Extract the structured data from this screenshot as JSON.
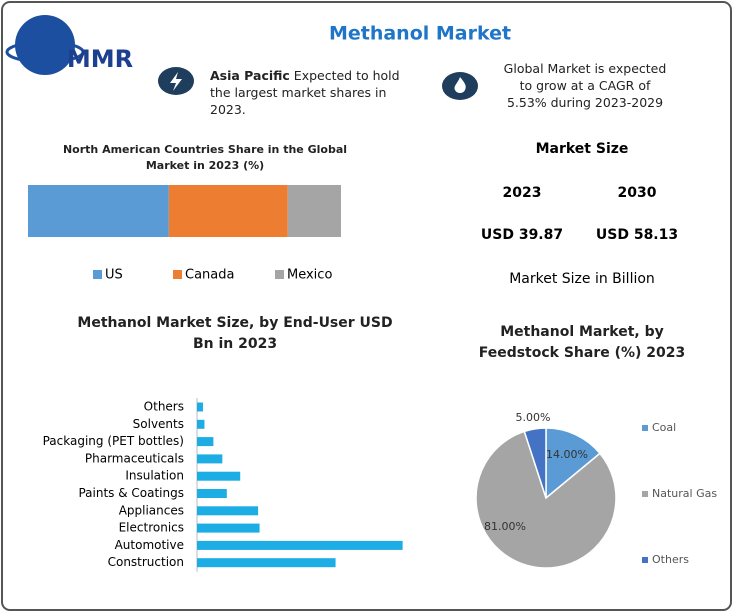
{
  "header": {
    "logo": "MMR",
    "title": "Methanol Market"
  },
  "highlights": [
    {
      "bold": "Asia Pacific",
      "text": " Expected to hold the largest market shares in 2023."
    },
    {
      "text": "Global Market is expected to grow at a CAGR of 5.53% during 2023-2029"
    }
  ],
  "market_size": {
    "title": "Market Size",
    "years": [
      "2023",
      "2030"
    ],
    "values": [
      "USD 39.87",
      "USD 58.13"
    ],
    "note": "Market Size in Billion"
  },
  "chart_data": [
    {
      "type": "stacked_bar",
      "title": "North American Countries Share in the Global Market in 2023 (%)",
      "series": [
        {
          "name": "US",
          "color": "#5b9bd5",
          "values": [
            45
          ]
        },
        {
          "name": "Canada",
          "color": "#ed7d31",
          "values": [
            38
          ]
        },
        {
          "name": "Mexico",
          "color": "#a5a5a5",
          "values": [
            17
          ]
        }
      ]
    },
    {
      "type": "hbar",
      "title": "Methanol Market Size, by End-User USD Bn  in 2023",
      "color": "#1cade4",
      "categories": [
        "Others",
        "Solvents",
        "Packaging (PET bottles)",
        "Pharmaceuticals",
        "Insulation",
        "Paints & Coatings",
        "Appliances",
        "Electronics",
        "Automotive",
        "Construction"
      ],
      "values": [
        0.4,
        0.5,
        1.1,
        1.7,
        2.9,
        2.0,
        4.1,
        4.2,
        13.8,
        9.3
      ]
    },
    {
      "type": "pie",
      "title": "Methanol Market, by Feedstock Share (%) 2023",
      "categories": [
        "Coal",
        "Natural Gas",
        "Others"
      ],
      "values": [
        14,
        81,
        5
      ],
      "value_labels": [
        "14.00%",
        "81.00%",
        "5.00%"
      ],
      "colors": [
        "#5b9bd5",
        "#a5a5a5",
        "#4472c4"
      ]
    }
  ]
}
